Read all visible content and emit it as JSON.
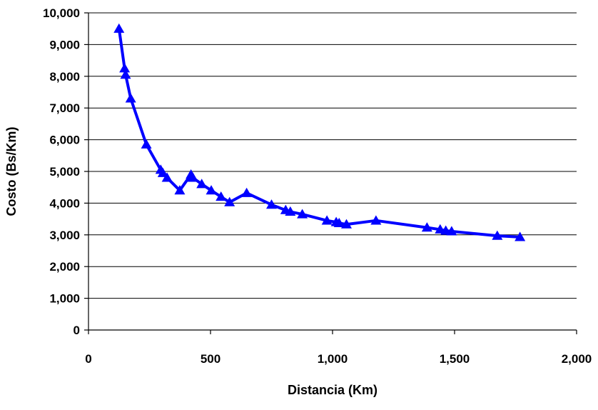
{
  "chart_data": {
    "type": "line",
    "title": "",
    "xlabel": "Distancia (Km)",
    "ylabel": "Costo (Bs/Km)",
    "xlim": [
      0,
      2000
    ],
    "ylim": [
      0,
      10000
    ],
    "grid": true,
    "colors": {
      "series": "#0000ff",
      "grid": "#000000"
    },
    "x_ticks": [
      {
        "value": 0,
        "label": "0"
      },
      {
        "value": 500,
        "label": "500"
      },
      {
        "value": 1000,
        "label": "1,000"
      },
      {
        "value": 1500,
        "label": "1,500"
      },
      {
        "value": 2000,
        "label": "2,000"
      }
    ],
    "y_ticks": [
      {
        "value": 0,
        "label": "0"
      },
      {
        "value": 1000,
        "label": "1,000"
      },
      {
        "value": 2000,
        "label": "2,000"
      },
      {
        "value": 3000,
        "label": "3,000"
      },
      {
        "value": 4000,
        "label": "4,000"
      },
      {
        "value": 5000,
        "label": "5,000"
      },
      {
        "value": 6000,
        "label": "6,000"
      },
      {
        "value": 7000,
        "label": "7,000"
      },
      {
        "value": 8000,
        "label": "8,000"
      },
      {
        "value": 9000,
        "label": "9,000"
      },
      {
        "value": 10000,
        "label": "10,000"
      }
    ],
    "series": [
      {
        "marker": "triangle",
        "points": [
          [
            125,
            9500
          ],
          [
            148,
            8250
          ],
          [
            152,
            8050
          ],
          [
            173,
            7300
          ],
          [
            237,
            5850
          ],
          [
            296,
            5050
          ],
          [
            305,
            4950
          ],
          [
            322,
            4800
          ],
          [
            374,
            4400
          ],
          [
            420,
            4900
          ],
          [
            428,
            4800
          ],
          [
            464,
            4600
          ],
          [
            503,
            4400
          ],
          [
            543,
            4200
          ],
          [
            578,
            4030
          ],
          [
            648,
            4320
          ],
          [
            750,
            3950
          ],
          [
            808,
            3780
          ],
          [
            827,
            3730
          ],
          [
            876,
            3650
          ],
          [
            977,
            3450
          ],
          [
            1015,
            3400
          ],
          [
            1027,
            3370
          ],
          [
            1057,
            3330
          ],
          [
            1178,
            3450
          ],
          [
            1387,
            3230
          ],
          [
            1441,
            3170
          ],
          [
            1464,
            3130
          ],
          [
            1488,
            3110
          ],
          [
            1675,
            2970
          ],
          [
            1768,
            2930
          ]
        ]
      }
    ]
  }
}
